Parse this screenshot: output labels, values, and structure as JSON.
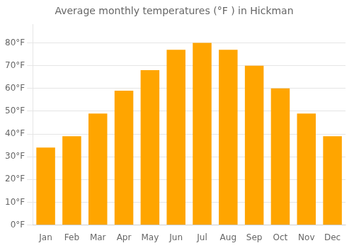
{
  "chart_data": {
    "type": "bar",
    "title": "Average monthly temperatures (°F ) in Hickman",
    "categories": [
      "Jan",
      "Feb",
      "Mar",
      "Apr",
      "May",
      "Jun",
      "Jul",
      "Aug",
      "Sep",
      "Oct",
      "Nov",
      "Dec"
    ],
    "values": [
      34,
      39,
      49,
      59,
      68,
      77,
      80,
      77,
      70,
      60,
      49,
      39
    ],
    "color": "#FFA500",
    "ylim": [
      0,
      88
    ],
    "yticks": [
      {
        "value": 0,
        "label": "0°F"
      },
      {
        "value": 10,
        "label": "10°F"
      },
      {
        "value": 20,
        "label": "20°F"
      },
      {
        "value": 30,
        "label": "30°F"
      },
      {
        "value": 40,
        "label": "40°F"
      },
      {
        "value": 50,
        "label": "50°F"
      },
      {
        "value": 60,
        "label": "60°F"
      },
      {
        "value": 70,
        "label": "70°F"
      },
      {
        "value": 80,
        "label": "80°F"
      }
    ],
    "grid": true
  }
}
